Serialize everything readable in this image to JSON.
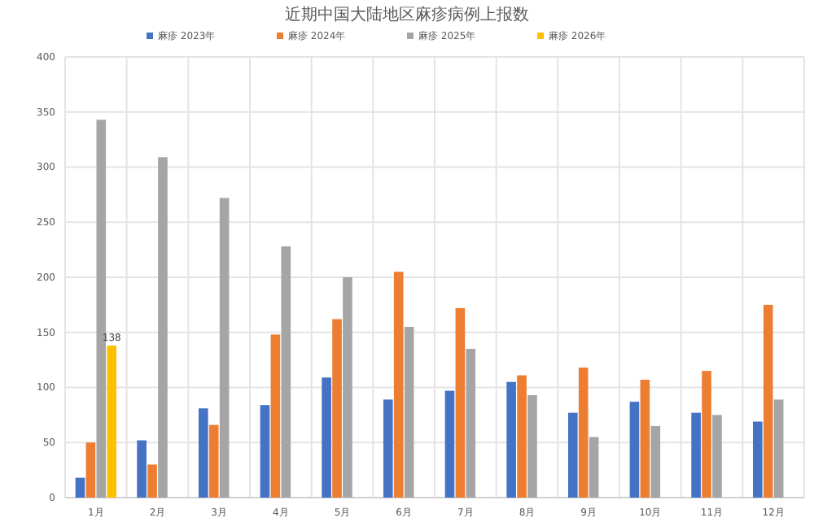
{
  "chart_data": {
    "type": "bar",
    "title": "近期中国大陆地区麻疹病例上报数",
    "categories": [
      "1月",
      "2月",
      "3月",
      "4月",
      "5月",
      "6月",
      "7月",
      "8月",
      "9月",
      "10月",
      "11月",
      "12月"
    ],
    "series": [
      {
        "name": "麻疹 2023年",
        "color": "#4472c4",
        "values": [
          18,
          52,
          81,
          84,
          109,
          89,
          97,
          105,
          77,
          87,
          77,
          69
        ]
      },
      {
        "name": "麻疹 2024年",
        "color": "#ed7d31",
        "values": [
          50,
          30,
          66,
          148,
          162,
          205,
          172,
          111,
          118,
          107,
          115,
          175
        ]
      },
      {
        "name": "麻疹 2025年",
        "color": "#a5a5a5",
        "values": [
          343,
          309,
          272,
          228,
          200,
          155,
          135,
          93,
          55,
          65,
          75,
          89
        ]
      },
      {
        "name": "麻疹 2026年",
        "color": "#ffc000",
        "values": [
          138,
          null,
          null,
          null,
          null,
          null,
          null,
          null,
          null,
          null,
          null,
          null
        ],
        "value_labels": [
          "138",
          null,
          null,
          null,
          null,
          null,
          null,
          null,
          null,
          null,
          null,
          null
        ]
      }
    ],
    "ylim": [
      0,
      400
    ],
    "yticks": [
      0,
      50,
      100,
      150,
      200,
      250,
      300,
      350,
      400
    ],
    "grid": true,
    "legend": "top"
  }
}
